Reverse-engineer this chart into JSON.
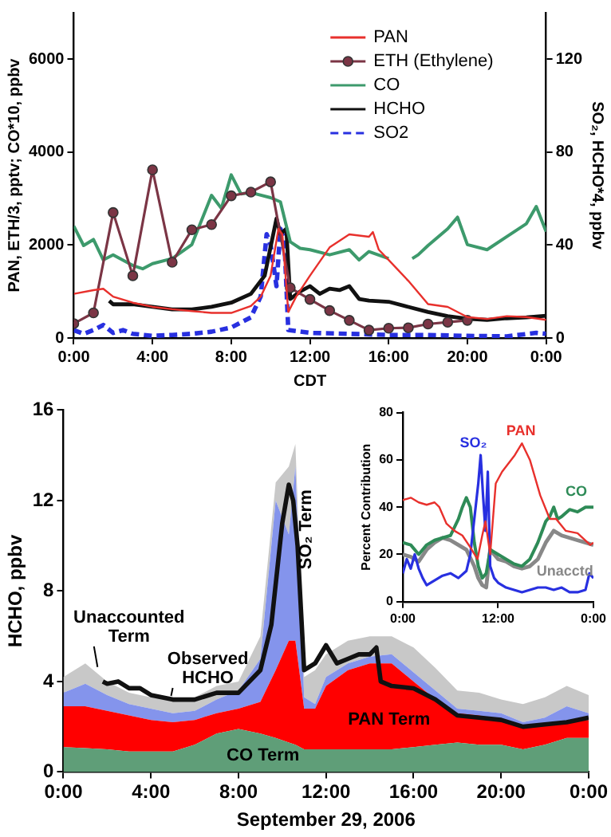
{
  "chart_data": [
    {
      "type": "line",
      "xlabel": "CDT",
      "ylabel": "PAN, ETH/3, pptv; CO*10, ppbv",
      "y2label": "SO₂, HCHO*4, ppbv",
      "xlim": [
        0,
        24
      ],
      "xticks": [
        {
          "value": 0,
          "label": "0:00"
        },
        {
          "value": 4,
          "label": "4:00"
        },
        {
          "value": 8,
          "label": "8:00"
        },
        {
          "value": 12,
          "label": "12:00"
        },
        {
          "value": 16,
          "label": "16:00"
        },
        {
          "value": 20,
          "label": "20:00"
        },
        {
          "value": 24,
          "label": "0:00"
        }
      ],
      "ylim": [
        0,
        7000
      ],
      "yticks": [
        0,
        2000,
        4000,
        6000
      ],
      "y2lim": [
        0,
        140
      ],
      "y2ticks": [
        0,
        40,
        80,
        120
      ],
      "legend": "top right",
      "marker": "none",
      "series": [
        {
          "name": "PAN",
          "color": "#e8302c",
          "x": [
            0,
            1,
            1.5,
            2,
            3,
            4,
            5,
            6,
            7,
            8,
            9,
            9.5,
            10,
            10.4,
            10.6,
            10.9,
            11.3,
            12,
            13,
            14,
            15,
            15.2,
            15.5,
            16,
            17,
            18,
            19,
            20,
            21,
            22,
            23,
            24
          ],
          "values": [
            950,
            1030,
            1060,
            890,
            760,
            670,
            620,
            580,
            540,
            540,
            690,
            890,
            1340,
            2350,
            2230,
            560,
            890,
            1340,
            1950,
            2230,
            2180,
            2280,
            1900,
            1680,
            1230,
            730,
            670,
            450,
            410,
            470,
            450,
            390
          ]
        },
        {
          "name": "ETH (Ethylene)",
          "color": "#7b3545",
          "marker": "circle",
          "x": [
            0,
            1,
            2,
            3,
            4,
            5,
            6,
            7,
            8,
            9,
            10,
            11,
            12,
            13,
            14,
            15,
            16,
            17,
            18,
            19,
            20
          ],
          "values": [
            310,
            540,
            2700,
            1340,
            3620,
            1630,
            2330,
            2440,
            3060,
            3140,
            3360,
            1080,
            830,
            590,
            380,
            170,
            210,
            220,
            300,
            340,
            380
          ]
        },
        {
          "name": "CO",
          "color": "#3d9a6c",
          "x": [
            0,
            0.5,
            1,
            1.5,
            2,
            3,
            3.5,
            4,
            5,
            6,
            7,
            7.5,
            8,
            8.5,
            9,
            10,
            10.5,
            11,
            11.5,
            12,
            13,
            14,
            14.5,
            15,
            16,
            16.6,
            17.2,
            17.5,
            18,
            19,
            19.5,
            20,
            21,
            22,
            23,
            23.5,
            24
          ],
          "values": [
            2410,
            1990,
            2120,
            1680,
            1790,
            1560,
            1490,
            1600,
            1710,
            2010,
            3070,
            2790,
            3510,
            3100,
            3130,
            3020,
            2930,
            2070,
            1930,
            1900,
            1790,
            1900,
            1680,
            1860,
            1710,
            null,
            1710,
            1790,
            1990,
            2350,
            2600,
            2010,
            1900,
            2180,
            2460,
            2830,
            2290
          ]
        },
        {
          "name": "HCHO",
          "color": "#111111",
          "axis": "y2",
          "x": [
            1.8,
            2,
            3,
            4,
            5,
            6,
            7,
            8,
            9,
            9.7,
            10.3,
            10.5,
            10.8,
            11,
            11.5,
            12,
            12.5,
            13,
            13.5,
            14,
            14.5,
            15,
            16,
            17,
            18,
            19,
            20,
            21,
            22,
            23,
            24
          ],
          "values": [
            16,
            14.5,
            14.5,
            13.4,
            12.3,
            12.3,
            13.4,
            15.2,
            19,
            26.8,
            51.4,
            44.7,
            47,
            16.8,
            20,
            22.3,
            19,
            21.2,
            20.6,
            22.3,
            16.8,
            16.1,
            15.6,
            13.4,
            11.2,
            9.4,
            8.3,
            7.8,
            8.5,
            8.9,
            9.6
          ]
        },
        {
          "name": "SO2",
          "color": "#2830e0",
          "axis": "y2",
          "line_style": "dashed",
          "x": [
            0,
            0.5,
            1,
            1.5,
            2,
            2.5,
            3,
            4,
            5,
            6,
            7,
            8,
            9,
            9.5,
            9.8,
            10,
            10.3,
            10.5,
            10.7,
            10.9,
            12,
            14,
            16,
            18,
            20,
            22,
            23.5,
            24
          ],
          "values": [
            3.4,
            1.8,
            3.4,
            5.6,
            2.2,
            3.4,
            1.8,
            0.9,
            1.3,
            1.8,
            2.7,
            4.5,
            8.9,
            17.9,
            44.7,
            40.2,
            22.3,
            47,
            42.5,
            3.4,
            2.2,
            1.8,
            1.3,
            1.3,
            0.9,
            0.7,
            2.2,
            1.8
          ]
        }
      ]
    },
    {
      "type": "area",
      "stacked": true,
      "xlabel": "September 29, 2006",
      "ylabel": "HCHO, ppbv",
      "xlim": [
        0,
        24
      ],
      "xticks": [
        {
          "value": 0,
          "label": "0:00"
        },
        {
          "value": 4,
          "label": "4:00"
        },
        {
          "value": 8,
          "label": "8:00"
        },
        {
          "value": 12,
          "label": "12:00"
        },
        {
          "value": 16,
          "label": "16:00"
        },
        {
          "value": 20,
          "label": "20:00"
        },
        {
          "value": 24,
          "label": "0:00"
        }
      ],
      "ylim": [
        0,
        16
      ],
      "yticks": [
        0,
        4,
        8,
        12,
        16
      ],
      "x": [
        0,
        1,
        2,
        3,
        4,
        5,
        6,
        7,
        8,
        9,
        9.7,
        10.3,
        10.6,
        11,
        11.5,
        12,
        13,
        14,
        15,
        16,
        17,
        18,
        19,
        20,
        21,
        22,
        23,
        24
      ],
      "series": [
        {
          "name": "CO Term",
          "color": "#5f9e78",
          "values": [
            1.1,
            1.05,
            1.0,
            0.9,
            0.9,
            0.9,
            1.2,
            1.7,
            1.9,
            1.7,
            1.5,
            1.3,
            1.2,
            1.0,
            1.0,
            1.0,
            1.0,
            1.0,
            1.0,
            1.1,
            1.2,
            1.3,
            1.2,
            1.2,
            1.0,
            1.2,
            1.5,
            1.5
          ]
        },
        {
          "name": "PAN Term",
          "color": "#ff0000",
          "values": [
            1.8,
            1.85,
            1.7,
            1.6,
            1.4,
            1.3,
            1.1,
            0.9,
            0.9,
            1.4,
            3.0,
            4.5,
            4.6,
            1.8,
            1.8,
            2.8,
            3.5,
            3.8,
            3.8,
            2.9,
            2.0,
            1.3,
            1.3,
            1.1,
            1.0,
            0.9,
            0.7,
            0.8
          ]
        },
        {
          "name": "SO₂ Term",
          "color": "#8494ec",
          "values": [
            0.6,
            1.0,
            0.7,
            0.5,
            0.5,
            0.4,
            0.4,
            0.6,
            0.8,
            1.9,
            7.5,
            4.7,
            7.7,
            0.5,
            0.2,
            0.4,
            0.3,
            0.3,
            0.4,
            0.4,
            0.4,
            0.2,
            0.2,
            0.3,
            0.2,
            0.3,
            0.7,
            0.3
          ]
        },
        {
          "name": "Unaccounted Term",
          "color": "#c8c8c8",
          "values": [
            0.7,
            0.9,
            0.6,
            0.5,
            0.5,
            0.6,
            0.6,
            0.6,
            0.4,
            1.0,
            0.8,
            3.0,
            1.0,
            0.9,
            1.5,
            1.0,
            1.0,
            0.9,
            0.8,
            1.1,
            1.0,
            0.8,
            0.8,
            0.6,
            0.8,
            0.9,
            0.9,
            0.8
          ]
        },
        {
          "name": "Observed HCHO",
          "type": "line",
          "color": "#111111",
          "x": [
            1.8,
            2,
            2.5,
            3,
            3.5,
            4,
            5,
            6,
            7,
            8,
            9,
            9.5,
            10,
            10.3,
            10.5,
            10.7,
            11,
            11.5,
            12,
            12.5,
            13,
            13.5,
            14,
            14.3,
            14.5,
            15,
            16,
            17,
            18,
            19,
            20,
            21,
            22,
            23,
            24
          ],
          "values": [
            4.0,
            3.9,
            4.0,
            3.7,
            3.7,
            3.4,
            3.2,
            3.2,
            3.5,
            3.5,
            4.5,
            6.5,
            11.0,
            12.7,
            12.0,
            10.0,
            4.5,
            4.8,
            5.6,
            4.8,
            5.0,
            5.2,
            5.2,
            5.5,
            4.0,
            3.8,
            3.7,
            3.2,
            2.5,
            2.4,
            2.3,
            2.0,
            2.1,
            2.2,
            2.4
          ]
        }
      ]
    },
    {
      "type": "line",
      "ylabel": "Percent Contribution",
      "xlim": [
        0,
        24
      ],
      "xticks": [
        {
          "value": 0,
          "label": "0:00"
        },
        {
          "value": 12,
          "label": "12:00"
        },
        {
          "value": 24,
          "label": "0:00"
        }
      ],
      "ylim": [
        0,
        80
      ],
      "yticks": [
        0,
        20,
        40,
        60,
        80
      ],
      "series": [
        {
          "name": "PAN",
          "color": "#e8302c",
          "x": [
            0,
            1,
            2,
            3,
            4,
            4.6,
            5.5,
            6.5,
            7.5,
            8.5,
            9.4,
            10,
            10.4,
            11,
            11.7,
            12.5,
            14.1,
            15,
            16,
            17.3,
            18.5,
            19.3,
            20.5,
            22,
            23.6,
            24
          ],
          "values": [
            43,
            44,
            42,
            41,
            42,
            40,
            33,
            30,
            28,
            23,
            18,
            28,
            34,
            20,
            50,
            55,
            62,
            67,
            60,
            45,
            35,
            35,
            30,
            29,
            24,
            25
          ]
        },
        {
          "name": "SO₂",
          "color": "#2830e0",
          "x": [
            0,
            0.5,
            1,
            1.5,
            2,
            2.5,
            3,
            4,
            5,
            6,
            7,
            8,
            8.5,
            9,
            9.5,
            9.8,
            10.1,
            10.4,
            10.7,
            11,
            11.5,
            12,
            13,
            14,
            15,
            16,
            17,
            18,
            19,
            20,
            21,
            22,
            23,
            23.5,
            24
          ],
          "values": [
            12,
            18,
            14,
            20,
            14,
            10,
            7,
            9,
            11,
            12,
            10,
            13,
            20,
            35,
            50,
            62,
            45,
            30,
            55,
            15,
            10,
            8,
            6,
            5,
            4,
            5,
            6,
            6,
            5,
            6,
            4,
            4,
            5,
            12,
            10
          ]
        },
        {
          "name": "CO",
          "color": "#2e8b57",
          "x": [
            0,
            1,
            2,
            3,
            4,
            5,
            6,
            7,
            7.5,
            8,
            8.5,
            9,
            9.5,
            10,
            10.5,
            11,
            12,
            13,
            14,
            15,
            16,
            17,
            18,
            18.5,
            19,
            19.5,
            20,
            21,
            22,
            23,
            24
          ],
          "values": [
            25,
            24,
            20,
            24,
            26,
            27,
            28,
            35,
            40,
            44,
            40,
            25,
            15,
            10,
            12,
            22,
            20,
            18,
            16,
            15,
            18,
            25,
            34,
            36,
            40,
            35,
            36,
            39,
            38,
            40,
            40
          ]
        },
        {
          "name": "Unacctd",
          "color": "#888888",
          "x": [
            0,
            1,
            2,
            3,
            4,
            5,
            6,
            7,
            8,
            9,
            9.5,
            10,
            10.5,
            11,
            12,
            13,
            14,
            15,
            16,
            17,
            18,
            19,
            20,
            21,
            22,
            23,
            24
          ],
          "values": [
            20,
            19,
            17,
            22,
            25,
            27,
            26,
            24,
            22,
            15,
            10,
            7,
            6,
            22,
            18,
            17,
            15,
            14,
            15,
            18,
            25,
            30,
            28,
            27,
            26,
            25,
            24
          ]
        }
      ]
    }
  ]
}
